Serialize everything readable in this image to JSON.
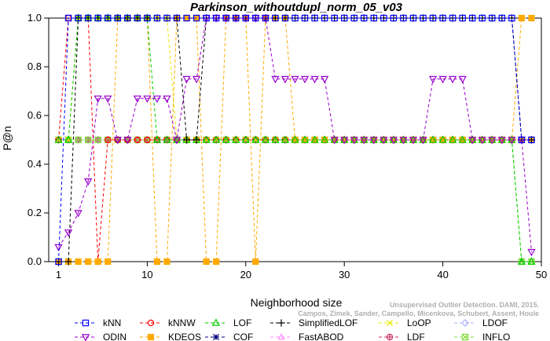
{
  "chart_data": {
    "type": "line",
    "title": "Parkinson_withoutdupl_norm_05_v03",
    "xlabel": "Neighborhood size",
    "ylabel": "P@n",
    "xlim": [
      0,
      50
    ],
    "ylim": [
      0,
      1
    ],
    "xticks": [
      1,
      10,
      20,
      30,
      40,
      50
    ],
    "yticks": [
      0.0,
      0.2,
      0.4,
      0.6,
      0.8,
      1.0
    ],
    "x": [
      1,
      2,
      3,
      4,
      5,
      6,
      7,
      8,
      9,
      10,
      11,
      12,
      13,
      14,
      15,
      16,
      17,
      18,
      19,
      20,
      21,
      22,
      23,
      24,
      25,
      26,
      27,
      28,
      29,
      30,
      31,
      32,
      33,
      34,
      35,
      36,
      37,
      38,
      39,
      40,
      41,
      42,
      43,
      44,
      45,
      46,
      47,
      48,
      49
    ],
    "grid": false,
    "legend_position": "bottom",
    "series": [
      {
        "name": "kNN",
        "color": "#0000ff",
        "marker": "square",
        "values": [
          0.0,
          1.0,
          1.0,
          1.0,
          1.0,
          1.0,
          1.0,
          1.0,
          1.0,
          1.0,
          1.0,
          1.0,
          1.0,
          1.0,
          1.0,
          1.0,
          1.0,
          1.0,
          1.0,
          1.0,
          1.0,
          1.0,
          1.0,
          1.0,
          1.0,
          1.0,
          1.0,
          1.0,
          1.0,
          1.0,
          1.0,
          1.0,
          1.0,
          1.0,
          1.0,
          1.0,
          1.0,
          1.0,
          1.0,
          1.0,
          1.0,
          1.0,
          1.0,
          1.0,
          1.0,
          1.0,
          1.0,
          0.5,
          0.5
        ]
      },
      {
        "name": "kNNW",
        "color": "#ff0000",
        "marker": "circle",
        "values": [
          0.5,
          1.0,
          1.0,
          1.0,
          0.0,
          0.5,
          0.5,
          0.5,
          0.5,
          0.5,
          0.5,
          0.5,
          0.5,
          0.5,
          0.5,
          0.5,
          0.5,
          0.5,
          0.5,
          0.5,
          0.5,
          0.5,
          0.5,
          0.5,
          0.5,
          0.5,
          0.5,
          0.5,
          0.5,
          0.5,
          0.5,
          0.5,
          0.5,
          0.5,
          0.5,
          0.5,
          0.5,
          0.5,
          0.5,
          0.5,
          0.5,
          0.5,
          0.5,
          0.5,
          0.5,
          0.5,
          0.5,
          0.5,
          0.5
        ]
      },
      {
        "name": "LOF",
        "color": "#00cc00",
        "marker": "triangle-up",
        "values": [
          0.5,
          0.5,
          1.0,
          1.0,
          1.0,
          1.0,
          1.0,
          1.0,
          1.0,
          1.0,
          0.5,
          0.5,
          0.5,
          0.5,
          0.5,
          0.5,
          0.5,
          0.5,
          0.5,
          0.5,
          0.5,
          0.5,
          0.5,
          0.5,
          0.5,
          0.5,
          0.5,
          0.5,
          0.5,
          0.5,
          0.5,
          0.5,
          0.5,
          0.5,
          0.5,
          0.5,
          0.5,
          0.5,
          0.5,
          0.5,
          0.5,
          0.5,
          0.5,
          0.5,
          0.5,
          0.5,
          0.5,
          0.0,
          0.0
        ]
      },
      {
        "name": "SimplifiedLOF",
        "color": "#000000",
        "marker": "plus",
        "values": [
          0.0,
          0.0,
          1.0,
          1.0,
          1.0,
          1.0,
          1.0,
          1.0,
          1.0,
          1.0,
          1.0,
          1.0,
          1.0,
          0.5,
          0.5,
          1.0,
          1.0,
          1.0,
          1.0,
          1.0,
          1.0,
          1.0,
          1.0,
          1.0,
          1.0,
          1.0,
          1.0,
          1.0,
          1.0,
          1.0,
          1.0,
          1.0,
          1.0,
          1.0,
          1.0,
          1.0,
          1.0,
          1.0,
          1.0,
          1.0,
          1.0,
          1.0,
          1.0,
          1.0,
          1.0,
          1.0,
          1.0,
          0.5,
          0.5
        ]
      },
      {
        "name": "LoOP",
        "color": "#e8e800",
        "marker": "cross",
        "values": [
          0.5,
          0.5,
          1.0,
          1.0,
          1.0,
          1.0,
          1.0,
          1.0,
          1.0,
          1.0,
          1.0,
          1.0,
          0.5,
          0.5,
          0.5,
          0.5,
          0.5,
          0.5,
          0.5,
          0.5,
          0.5,
          0.5,
          0.5,
          0.5,
          0.5,
          0.5,
          0.5,
          0.5,
          0.5,
          0.5,
          0.5,
          0.5,
          0.5,
          0.5,
          0.5,
          0.5,
          0.5,
          0.5,
          0.5,
          0.5,
          0.5,
          0.5,
          0.5,
          0.5,
          0.5,
          0.5,
          0.5,
          0.5,
          0.5
        ]
      },
      {
        "name": "LDOF",
        "color": "#b0b0ff",
        "marker": "diamond",
        "values": [
          0.5,
          0.5,
          0.5,
          0.5,
          0.5,
          0.5,
          0.5,
          0.5,
          0.5,
          0.5,
          0.5,
          0.5,
          0.5,
          0.5,
          0.5,
          0.5,
          0.5,
          0.5,
          0.5,
          0.5,
          0.5,
          0.5,
          0.5,
          0.5,
          0.5,
          0.5,
          0.5,
          0.5,
          0.5,
          0.5,
          0.5,
          0.5,
          0.5,
          0.5,
          0.5,
          0.5,
          0.5,
          0.5,
          0.5,
          0.5,
          0.5,
          0.5,
          0.5,
          0.5,
          0.5,
          0.5,
          0.5,
          0.5,
          0.5
        ]
      },
      {
        "name": "ODIN",
        "color": "#9900cc",
        "marker": "triangle-down",
        "values": [
          0.06,
          0.12,
          0.2,
          0.33,
          0.67,
          0.67,
          0.5,
          0.5,
          0.67,
          0.67,
          0.67,
          0.67,
          0.5,
          0.75,
          0.75,
          1.0,
          1.0,
          1.0,
          1.0,
          1.0,
          1.0,
          1.0,
          0.75,
          0.75,
          0.75,
          0.75,
          0.75,
          0.75,
          0.5,
          0.5,
          0.5,
          0.5,
          0.5,
          0.5,
          0.5,
          0.5,
          0.5,
          0.5,
          0.75,
          0.75,
          0.75,
          0.75,
          0.5,
          0.5,
          0.5,
          0.5,
          0.5,
          0.5,
          0.04
        ]
      },
      {
        "name": "KDEOS",
        "color": "#ffaa00",
        "marker": "square-filled",
        "values": [
          0.0,
          0.0,
          0.0,
          0.0,
          0.0,
          0.0,
          1.0,
          1.0,
          1.0,
          1.0,
          0.0,
          0.0,
          1.0,
          1.0,
          1.0,
          0.0,
          0.0,
          1.0,
          1.0,
          1.0,
          0.0,
          1.0,
          1.0,
          1.0,
          0.5,
          0.5,
          0.5,
          0.5,
          0.5,
          0.5,
          0.5,
          0.5,
          0.5,
          0.5,
          0.5,
          0.5,
          0.5,
          0.5,
          0.5,
          0.5,
          0.5,
          0.5,
          0.5,
          0.5,
          0.5,
          0.5,
          0.5,
          1.0,
          1.0
        ]
      },
      {
        "name": "COF",
        "color": "#000080",
        "marker": "asterisk",
        "values": [
          0.5,
          0.5,
          0.5,
          0.5,
          0.5,
          0.5,
          0.5,
          0.5,
          0.5,
          0.5,
          0.5,
          0.5,
          0.5,
          0.5,
          0.5,
          0.5,
          0.5,
          0.5,
          0.5,
          0.5,
          0.5,
          0.5,
          0.5,
          0.5,
          0.5,
          0.5,
          0.5,
          0.5,
          0.5,
          0.5,
          0.5,
          0.5,
          0.5,
          0.5,
          0.5,
          0.5,
          0.5,
          0.5,
          0.5,
          0.5,
          0.5,
          0.5,
          0.5,
          0.5,
          0.5,
          0.5,
          0.5,
          0.5,
          0.5
        ]
      },
      {
        "name": "FastABOD",
        "color": "#ff88ff",
        "marker": "triangle-up-small",
        "values": [
          0.5,
          0.5,
          0.5,
          0.5,
          0.5,
          0.5,
          0.5,
          0.5,
          0.5,
          0.5,
          0.5,
          0.5,
          0.5,
          0.5,
          0.5,
          0.5,
          0.5,
          0.5,
          0.5,
          0.5,
          0.5,
          0.5,
          0.5,
          0.5,
          0.5,
          0.5,
          0.5,
          0.5,
          0.5,
          0.5,
          0.5,
          0.5,
          0.5,
          0.5,
          0.5,
          0.5,
          0.5,
          0.5,
          0.5,
          0.5,
          0.5,
          0.5,
          0.5,
          0.5,
          0.5,
          0.5,
          0.5,
          0.5,
          0.5
        ]
      },
      {
        "name": "LDF",
        "color": "#cc3366",
        "marker": "circle-plus",
        "values": [
          0.5,
          0.5,
          0.5,
          0.5,
          0.5,
          0.5,
          0.5,
          0.5,
          0.5,
          0.5,
          0.5,
          0.5,
          0.5,
          0.5,
          0.5,
          0.5,
          0.5,
          0.5,
          0.5,
          0.5,
          0.5,
          0.5,
          0.5,
          0.5,
          0.5,
          0.5,
          0.5,
          0.5,
          0.5,
          0.5,
          0.5,
          0.5,
          0.5,
          0.5,
          0.5,
          0.5,
          0.5,
          0.5,
          0.5,
          0.5,
          0.5,
          0.5,
          0.5,
          0.5,
          0.5,
          0.5,
          0.5,
          0.5,
          0.5
        ]
      },
      {
        "name": "INFLO",
        "color": "#88dd44",
        "marker": "square-cross",
        "values": [
          0.5,
          0.5,
          0.5,
          0.5,
          0.5,
          0.5,
          0.5,
          0.5,
          0.5,
          0.5,
          0.5,
          0.5,
          0.5,
          0.5,
          0.5,
          0.5,
          0.5,
          0.5,
          0.5,
          0.5,
          0.5,
          0.5,
          0.5,
          0.5,
          0.5,
          0.5,
          0.5,
          0.5,
          0.5,
          0.5,
          0.5,
          0.5,
          0.5,
          0.5,
          0.5,
          0.5,
          0.5,
          0.5,
          0.5,
          0.5,
          0.5,
          0.5,
          0.5,
          0.5,
          0.5,
          0.5,
          0.5,
          0.0,
          0.0
        ]
      }
    ],
    "legend_order": [
      "kNN",
      "kNNW",
      "LOF",
      "SimplifiedLOF",
      "LoOP",
      "LDOF",
      "ODIN",
      "KDEOS",
      "COF",
      "FastABOD",
      "LDF",
      "INFLO"
    ]
  },
  "watermark": {
    "line1": "Unsupervised Outlier Detection. DAMI, 2015.",
    "line2": "Campos, Zimek, Sander, Campello, Micenkova, Schubert, Assent, Houle"
  }
}
